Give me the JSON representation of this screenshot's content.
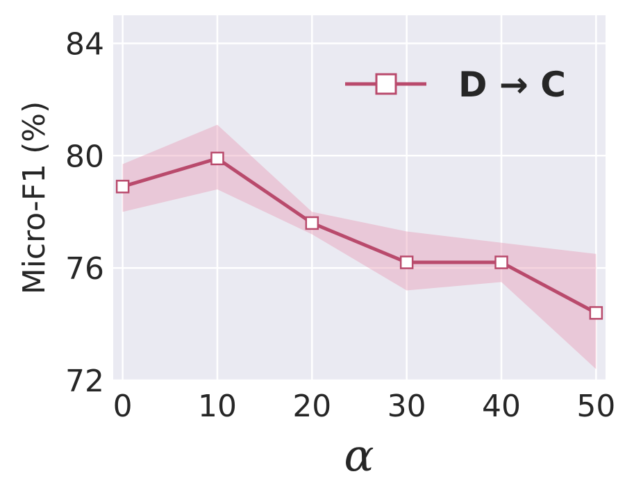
{
  "chart_data": {
    "type": "line",
    "xlabel": "α",
    "ylabel": "Micro-F1 (%)",
    "x": [
      0,
      10,
      20,
      30,
      40,
      50
    ],
    "xticks": [
      "0",
      "10",
      "20",
      "30",
      "40",
      "50"
    ],
    "yticks": [
      "72",
      "76",
      "80",
      "84"
    ],
    "xlim": [
      -1,
      51
    ],
    "ylim": [
      72,
      85
    ],
    "grid": true,
    "legend_position": "top-right",
    "series": [
      {
        "name": "D → C",
        "values": [
          78.9,
          79.9,
          77.6,
          76.2,
          76.2,
          74.4
        ],
        "lower": [
          78.0,
          78.8,
          77.2,
          75.2,
          75.5,
          72.4
        ],
        "upper": [
          79.7,
          81.1,
          78.0,
          77.3,
          76.9,
          76.5
        ],
        "color": "#b94a6c",
        "band_color": "#e8a0b8",
        "marker": "square"
      }
    ]
  }
}
